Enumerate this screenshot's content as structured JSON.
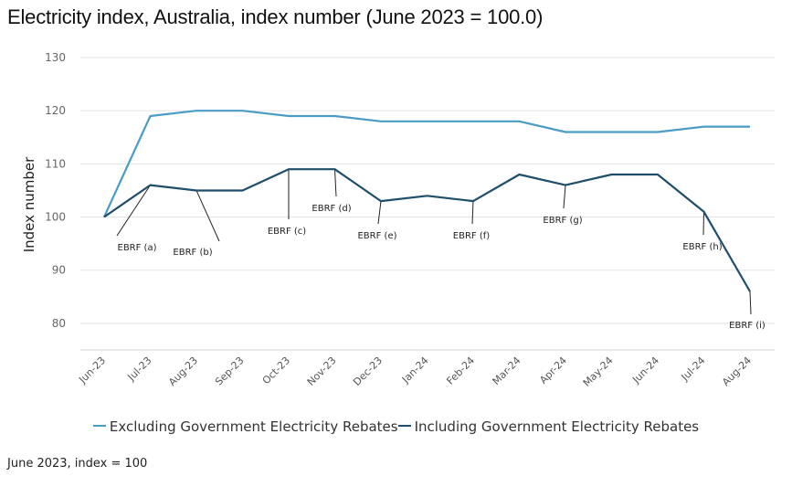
{
  "chart_data": {
    "type": "line",
    "title": "Electricity index, Australia, index number (June 2023 = 100.0)",
    "xlabel": "",
    "ylabel": "Index number",
    "ylim": [
      75,
      130
    ],
    "yticks": [
      80,
      90,
      100,
      110,
      120,
      130
    ],
    "grid": true,
    "legend_position": "bottom",
    "categories": [
      "Jun-23",
      "Jul-23",
      "Aug-23",
      "Sep-23",
      "Oct-23",
      "Nov-23",
      "Dec-23",
      "Jan-24",
      "Feb-24",
      "Mar-24",
      "Apr-24",
      "May-24",
      "Jun-24",
      "Jul-24",
      "Aug-24"
    ],
    "series": [
      {
        "name": "Excluding Government Electricity Rebates",
        "color": "#4a9cc4",
        "values": [
          100,
          119,
          120,
          120,
          119,
          119,
          118,
          118,
          118,
          118,
          116,
          116,
          116,
          117,
          117
        ]
      },
      {
        "name": "Including Government Electricity Rebates",
        "color": "#1f4e6b",
        "values": [
          100,
          106,
          105,
          105,
          109,
          109,
          103,
          104,
          103,
          108,
          106,
          108,
          108,
          101,
          86
        ]
      }
    ],
    "annotations": [
      {
        "label": "EBRF (a)",
        "category": "Jul-23",
        "series": 1
      },
      {
        "label": "EBRF (b)",
        "category": "Aug-23",
        "series": 1
      },
      {
        "label": "EBRF (c)",
        "category": "Oct-23",
        "series": 1
      },
      {
        "label": "EBRF (d)",
        "category": "Nov-23",
        "series": 1
      },
      {
        "label": "EBRF (e)",
        "category": "Dec-23",
        "series": 1
      },
      {
        "label": "EBRF (f)",
        "category": "Feb-24",
        "series": 1
      },
      {
        "label": "EBRF (g)",
        "category": "Apr-24",
        "series": 1
      },
      {
        "label": "EBRF (h)",
        "category": "Jul-24",
        "series": 1
      },
      {
        "label": "EBRF (i)",
        "category": "Aug-24",
        "series": 1
      }
    ]
  },
  "legend": {
    "items": [
      {
        "label": "Excluding Government Electricity Rebates",
        "color": "#4a9cc4"
      },
      {
        "label": "Including Government Electricity Rebates",
        "color": "#1f4e6b"
      }
    ]
  },
  "footnote": "June 2023, index = 100"
}
